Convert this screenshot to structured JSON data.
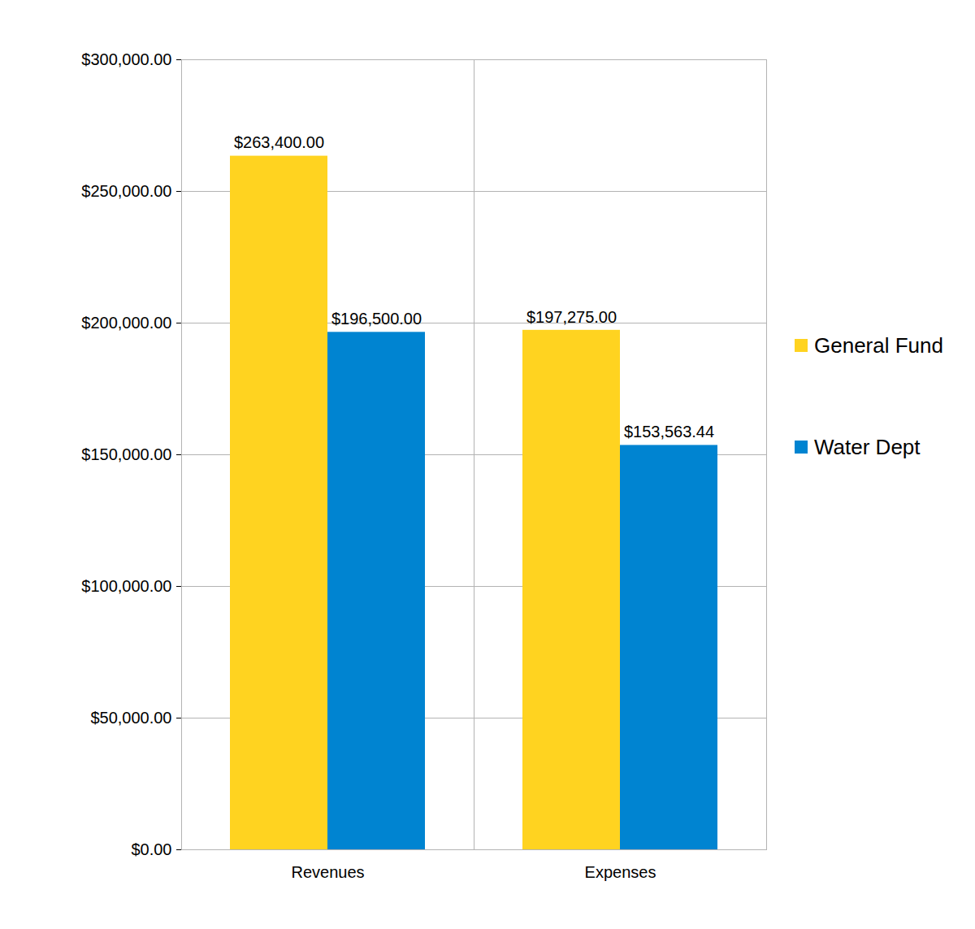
{
  "chart_data": {
    "type": "bar",
    "categories": [
      "Revenues",
      "Expenses"
    ],
    "series": [
      {
        "name": "General Fund",
        "color": "#ffd320",
        "values": [
          263400,
          197275
        ],
        "value_labels": [
          "$263,400.00",
          "$197,275.00"
        ]
      },
      {
        "name": "Water Dept",
        "color": "#0084d1",
        "values": [
          196500,
          153563.44
        ],
        "value_labels": [
          "$196,500.00",
          "$153,563.44"
        ]
      }
    ],
    "ylim": [
      0,
      300000
    ],
    "yticks": [
      {
        "value": 0,
        "label": "$0.00"
      },
      {
        "value": 50000,
        "label": "$50,000.00"
      },
      {
        "value": 100000,
        "label": "$100,000.00"
      },
      {
        "value": 150000,
        "label": "$150,000.00"
      },
      {
        "value": 200000,
        "label": "$200,000.00"
      },
      {
        "value": 250000,
        "label": "$250,000.00"
      },
      {
        "value": 300000,
        "label": "$300,000.00"
      }
    ],
    "grid": true,
    "data_labels": true,
    "legend": "right"
  }
}
